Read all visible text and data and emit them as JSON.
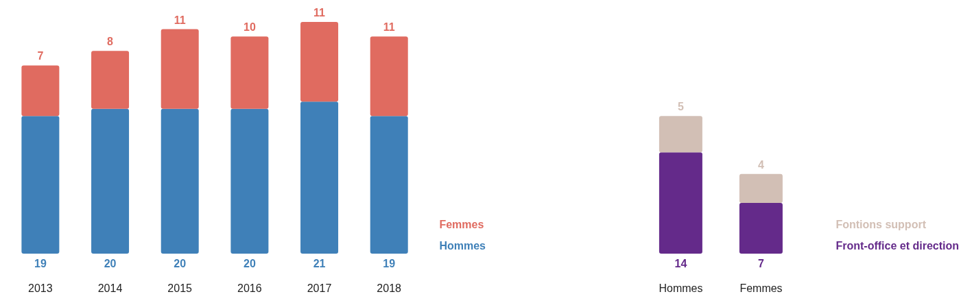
{
  "chart_data": [
    {
      "type": "bar",
      "stacked": true,
      "data_labels": true,
      "legend": "bottom right",
      "categories": [
        "2013",
        "2014",
        "2015",
        "2016",
        "2017",
        "2018"
      ],
      "series": [
        {
          "name": "Hommes",
          "color": "#3f80b8",
          "values": [
            19,
            20,
            20,
            20,
            21,
            19
          ]
        },
        {
          "name": "Femmes",
          "color": "#e06b60",
          "values": [
            7,
            8,
            11,
            10,
            11,
            11
          ]
        }
      ]
    },
    {
      "type": "bar",
      "stacked": true,
      "data_labels": true,
      "legend": "bottom right",
      "categories": [
        "Hommes",
        "Femmes"
      ],
      "series": [
        {
          "name": "Front-office et direction",
          "color": "#642a8a",
          "values": [
            14,
            7
          ]
        },
        {
          "name": "Fontions support",
          "color": "#d2bfb5",
          "values": [
            5,
            4
          ]
        }
      ]
    }
  ]
}
